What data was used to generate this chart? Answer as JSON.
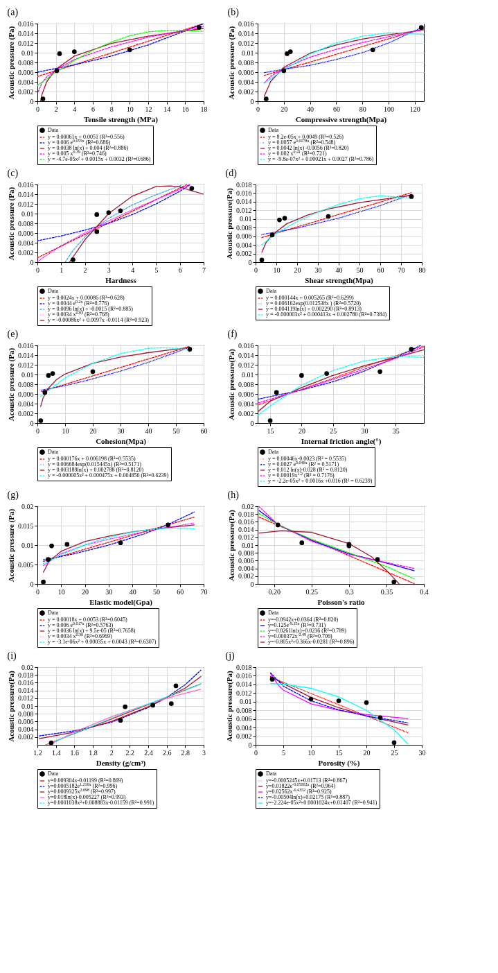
{
  "chart_data": [
    {
      "type": "line",
      "title": "(a)",
      "xlabel": "Tensile strength (MPa)",
      "ylabel": "Acoustic pressure (Pa)",
      "xlim": [
        0,
        18
      ],
      "xticks": [
        0,
        2,
        4,
        6,
        8,
        10,
        12,
        14,
        16,
        18
      ],
      "ylim": [
        0,
        0.016
      ],
      "yticks": [
        0,
        0.002,
        0.004,
        0.006,
        0.008,
        0.01,
        0.012,
        0.014,
        0.016
      ],
      "grid": true,
      "legend": "bottom",
      "series": [
        {
          "name": "Data",
          "type": "scatter",
          "marker": "circle",
          "color": "#000000",
          "x": [
            0.6,
            2.1,
            2.4,
            4,
            10,
            17.5
          ],
          "values": [
            0.0005,
            0.0063,
            0.0098,
            0.0102,
            0.0106,
            0.0152
          ]
        },
        {
          "name": "y = 0.00061x + 0.0051 (R²=0.556)",
          "color": "#ff0000",
          "line_style": "dashed",
          "x": [
            0,
            18
          ],
          "values": [
            0.0051,
            0.016
          ]
        },
        {
          "name": "y = 0.006 e$^{0.055x}$ (R²=0.686)",
          "color": "#0000ff",
          "line_style": "dashed",
          "x": [
            0,
            4,
            8,
            12,
            16,
            18
          ],
          "values": [
            0.006,
            0.0075,
            0.0093,
            0.0116,
            0.0145,
            0.016
          ]
        },
        {
          "name": "y = 0.0038 ln(x) + 0.004 (R²=0.886)",
          "color": "#a2142f",
          "line_style": "solid",
          "x": [
            0.35,
            0.5,
            1,
            2,
            4,
            8,
            12,
            18
          ],
          "values": [
            0,
            0.0014,
            0.004,
            0.0066,
            0.0093,
            0.0119,
            0.0134,
            0.015
          ]
        },
        {
          "name": "y = 0.005 x$^{0.39}$ (R²=0.746)",
          "color": "#ff00ff",
          "line_style": "dashed",
          "x": [
            0.1,
            0.5,
            1,
            2,
            4,
            8,
            12,
            18
          ],
          "values": [
            0.002,
            0.0038,
            0.005,
            0.0065,
            0.0086,
            0.0112,
            0.0132,
            0.0154
          ]
        },
        {
          "name": "y = -4.7e-05x² + 0.0015x + 0.0032 (R²=0.686)",
          "color": "#00ff00",
          "line_style": "dashed",
          "x": [
            0,
            2,
            4,
            6,
            8,
            10,
            12,
            14,
            16,
            18
          ],
          "values": [
            0.0032,
            0.006,
            0.0084,
            0.0105,
            0.0122,
            0.0135,
            0.0143,
            0.0146,
            0.0146,
            0.0144
          ]
        }
      ]
    },
    {
      "type": "line",
      "title": "(b)",
      "xlabel": "Compressive strength(Mpa)",
      "ylabel": "Acoustic pressure (Pa)",
      "xlim": [
        0,
        127
      ],
      "xticks": [
        0,
        20,
        40,
        60,
        80,
        100,
        120
      ],
      "ylim": [
        0,
        0.016
      ],
      "yticks": [
        0,
        0.002,
        0.004,
        0.006,
        0.008,
        0.01,
        0.012,
        0.014,
        0.016
      ],
      "grid": true,
      "legend": "bottom",
      "series": [
        {
          "name": "Data",
          "type": "scatter",
          "marker": "circle",
          "color": "#000000",
          "x": [
            6.5,
            20,
            22.5,
            25,
            88,
            125
          ],
          "values": [
            0.0005,
            0.0063,
            0.0098,
            0.0102,
            0.0106,
            0.0152
          ]
        },
        {
          "name": "y = 8.2e-05x + 0.0049 (R²=0.526)",
          "color": "#ff0000",
          "line_style": "dashed",
          "x": [
            5,
            127
          ],
          "values": [
            0.0053,
            0.015
          ]
        },
        {
          "name": "y = 0.0057 e$^{0.0078x}$ (R²=0.548)",
          "color": "#0000ff",
          "line_style": "dotted",
          "x": [
            5,
            20,
            40,
            60,
            80,
            100,
            127
          ],
          "values": [
            0.0059,
            0.0066,
            0.0074,
            0.0086,
            0.01,
            0.012,
            0.0154
          ]
        },
        {
          "name": "y = 0.0042 ln(x) -0.0056 (R²=0.820)",
          "color": "#a2142f",
          "line_style": "solid",
          "x": [
            5,
            10,
            20,
            40,
            60,
            80,
            100,
            127
          ],
          "values": [
            0.001,
            0.0041,
            0.007,
            0.0099,
            0.0116,
            0.0128,
            0.0137,
            0.0147
          ]
        },
        {
          "name": "y = 0.002 x$^{0.41}$ (R²=0.721)",
          "color": "#ff00ff",
          "line_style": "dashed",
          "x": [
            5,
            10,
            20,
            40,
            60,
            80,
            100,
            127
          ],
          "values": [
            0.0038,
            0.0051,
            0.0068,
            0.0091,
            0.0107,
            0.0121,
            0.0133,
            0.0148
          ]
        },
        {
          "name": "y = -9.8e-07x² + 0.00021x + 0.0027 (R²=0.786)",
          "color": "#00ffff",
          "line_style": "dashed",
          "x": [
            5,
            20,
            40,
            60,
            80,
            100,
            110,
            127
          ],
          "values": [
            0.0037,
            0.0065,
            0.0097,
            0.012,
            0.0134,
            0.0141,
            0.0141,
            0.0137
          ]
        }
      ]
    },
    {
      "type": "line",
      "title": "(c)",
      "xlabel": "Hardness",
      "ylabel": "Acoustic pressure (Pa)",
      "xlim": [
        0,
        7
      ],
      "xticks": [
        0,
        1,
        2,
        3,
        4,
        5,
        6,
        7
      ],
      "ylim": [
        0,
        0.016
      ],
      "yticks": [
        0,
        0.002,
        0.004,
        0.006,
        0.008,
        0.01,
        0.012,
        0.014,
        0.016
      ],
      "grid": true,
      "legend": "bottom",
      "series": [
        {
          "name": "Data",
          "type": "scatter",
          "marker": "circle",
          "color": "#000000",
          "x": [
            1.5,
            2.5,
            2.5,
            3,
            3.5,
            6.5
          ],
          "values": [
            0.0005,
            0.0063,
            0.0098,
            0.0102,
            0.0106,
            0.0152
          ]
        },
        {
          "name": "y = 0.0024x + 0.00086 (R²=0.628)",
          "color": "#ff0000",
          "line_style": "dashed",
          "x": [
            0,
            6.3
          ],
          "values": [
            0.0009,
            0.016
          ]
        },
        {
          "name": "y = 0.0044 e$^{0.2x}$ (R²=0.776)",
          "color": "#0000ff",
          "line_style": "dashed",
          "x": [
            0,
            1,
            2,
            3,
            4,
            5,
            6,
            6.45
          ],
          "values": [
            0.0044,
            0.0054,
            0.0066,
            0.008,
            0.0098,
            0.012,
            0.0146,
            0.016
          ]
        },
        {
          "name": "y = 0.0096 ln(x) + -0.0015 (R²=0.885)",
          "color": "#3fa9f5",
          "line_style": "dashed",
          "x": [
            1.17,
            1.5,
            2,
            2.5,
            3,
            4,
            5,
            6,
            6.1
          ],
          "values": [
            0,
            0.0024,
            0.0052,
            0.0073,
            0.009,
            0.0118,
            0.0139,
            0.0157,
            0.016
          ]
        },
        {
          "name": "y = 0.0034 x$^{0.83}$ (R²=0.768)",
          "color": "#ff00ff",
          "line_style": "dotted",
          "x": [
            0.02,
            1,
            2,
            3,
            4,
            5,
            6,
            6.4
          ],
          "values": [
            0.0002,
            0.0034,
            0.006,
            0.0085,
            0.0108,
            0.0129,
            0.015,
            0.016
          ]
        },
        {
          "name": "y = -0.00086x² + 0.0097x -0.0114 (R²=0.923)",
          "color": "#a2142f",
          "line_style": "solid",
          "x": [
            1.35,
            2,
            3,
            4,
            5,
            5.6,
            6,
            6.5,
            7
          ],
          "values": [
            0,
            0.0046,
            0.01,
            0.0136,
            0.0156,
            0.0157,
            0.0155,
            0.0147,
            0.014
          ]
        }
      ]
    },
    {
      "type": "line",
      "title": "(d)",
      "xlabel": "Shear strength(Mpa)",
      "ylabel": "Acoustic pressure(Pa)",
      "xlim": [
        0,
        80
      ],
      "xticks": [
        0,
        10,
        20,
        30,
        40,
        50,
        60,
        70,
        80
      ],
      "ylim": [
        0,
        0.018
      ],
      "yticks": [
        0,
        0.002,
        0.004,
        0.006,
        0.008,
        0.01,
        0.012,
        0.014,
        0.016,
        0.018
      ],
      "grid": true,
      "legend": "bottom",
      "series": [
        {
          "name": "Data",
          "type": "scatter",
          "marker": "circle",
          "color": "#000000",
          "x": [
            3,
            8,
            11.5,
            14,
            35,
            75
          ],
          "values": [
            0.0005,
            0.0063,
            0.0098,
            0.0102,
            0.0106,
            0.0152
          ]
        },
        {
          "name": "y = 0.000144x + 0.005265 (R²=0.6299)",
          "color": "#ff0000",
          "line_style": "dashed",
          "x": [
            3,
            75
          ],
          "values": [
            0.0057,
            0.0161
          ]
        },
        {
          "name": "y = 0.006162exp(0.012538x ) (R²=0.5720)",
          "color": "#0000ff",
          "line_style": "dotted",
          "x": [
            3,
            20,
            40,
            60,
            75
          ],
          "values": [
            0.0064,
            0.0079,
            0.0102,
            0.0131,
            0.0157
          ]
        },
        {
          "name": "y = 0.004119ln(x) + 0.002290 (R²=0.8913)",
          "color": "#a2142f",
          "line_style": "solid",
          "x": [
            3,
            5,
            8,
            15,
            25,
            35,
            50,
            75
          ],
          "values": [
            0.0023,
            0.0045,
            0.0063,
            0.0089,
            0.0109,
            0.0123,
            0.0138,
            0.0155
          ]
        },
        {
          "name": "y = -0.000003x² + 0.000413x + 0.002780 (R²=0.7384)",
          "color": "#00ffff",
          "line_style": "dashed",
          "x": [
            3,
            10,
            20,
            30,
            40,
            50,
            60,
            70,
            75
          ],
          "values": [
            0.004,
            0.0067,
            0.0094,
            0.0116,
            0.0134,
            0.0147,
            0.0154,
            0.015,
            0.0148
          ]
        }
      ]
    },
    {
      "type": "line",
      "title": "(e)",
      "xlabel": "Cohesion(Mpa)",
      "ylabel": "Acoustic pressure (Pa)",
      "xlim": [
        0,
        60
      ],
      "xticks": [
        0,
        10,
        20,
        30,
        40,
        50,
        60
      ],
      "ylim": [
        0,
        0.016
      ],
      "yticks": [
        0,
        0.002,
        0.004,
        0.006,
        0.008,
        0.01,
        0.012,
        0.014,
        0.016
      ],
      "grid": true,
      "legend": "bottom",
      "series": [
        {
          "name": "Data",
          "type": "scatter",
          "marker": "circle",
          "color": "#000000",
          "x": [
            1.2,
            2.7,
            4,
            5.5,
            20,
            55
          ],
          "values": [
            0.0005,
            0.0063,
            0.0098,
            0.0102,
            0.0106,
            0.0152
          ]
        },
        {
          "name": "y = 0.000176x + 0.006198 (R²=0.5535)",
          "color": "#ff0000",
          "line_style": "dashed",
          "x": [
            1.5,
            55
          ],
          "values": [
            0.0065,
            0.0158
          ]
        },
        {
          "name": "y = 0.006684exp(0.015445x) (R²=0.5171)",
          "color": "#0000ff",
          "line_style": "dotted",
          "x": [
            1.5,
            10,
            20,
            30,
            40,
            55
          ],
          "values": [
            0.0068,
            0.0077,
            0.0091,
            0.0107,
            0.0125,
            0.0156
          ]
        },
        {
          "name": "y = 0.003189ln(x) + 0.002788 (R²=0.8120)",
          "color": "#a2142f",
          "line_style": "solid",
          "x": [
            1.2,
            2,
            4,
            7,
            10,
            20,
            30,
            40,
            55
          ],
          "values": [
            0.0034,
            0.0051,
            0.0072,
            0.009,
            0.0101,
            0.0123,
            0.0136,
            0.0145,
            0.0156
          ]
        },
        {
          "name": "y = -0.000005x² + 0.000475x + 0.004850 (R²=0.6239)",
          "color": "#00ffff",
          "line_style": "dashed",
          "x": [
            1.2,
            5,
            10,
            20,
            30,
            40,
            45,
            50,
            55
          ],
          "values": [
            0.0055,
            0.0071,
            0.0093,
            0.0123,
            0.0143,
            0.0154,
            0.0155,
            0.0154,
            0.0151
          ]
        }
      ]
    },
    {
      "type": "line",
      "title": "(f)",
      "xlabel": "Internal friction angle(°)",
      "ylabel": "Acoustic pressure(Pa)",
      "xlim": [
        13,
        39.5
      ],
      "xticks": [
        15,
        20,
        25,
        30,
        35
      ],
      "ylim": [
        0,
        0.016
      ],
      "yticks": [
        0,
        0.002,
        0.004,
        0.006,
        0.008,
        0.01,
        0.012,
        0.014,
        0.016
      ],
      "grid": true,
      "legend": "bottom",
      "series": [
        {
          "name": "Data",
          "type": "scatter",
          "marker": "circle",
          "color": "#000000",
          "x": [
            15,
            16,
            20,
            24,
            32.5,
            37.5
          ],
          "values": [
            0.0005,
            0.0063,
            0.0098,
            0.0102,
            0.0106,
            0.0152
          ]
        },
        {
          "name": "y = 0.00046x-0.0023 (R² = 0.5535)",
          "color": "#ff0000",
          "line_style": "dotted",
          "x": [
            13,
            39.5
          ],
          "values": [
            0.0037,
            0.0159
          ]
        },
        {
          "name": "y = 0.0027 e$^{0.046x}$ (R² = 0.5171)",
          "color": "#0000ff",
          "line_style": "dashed",
          "x": [
            13,
            20,
            25,
            30,
            35,
            39
          ],
          "values": [
            0.0049,
            0.0068,
            0.0085,
            0.0107,
            0.0135,
            0.016
          ]
        },
        {
          "name": "y = 0.012 ln(x)-0.028 (R² = 0.8120)",
          "color": "#a2142f",
          "line_style": "solid",
          "x": [
            13,
            15,
            20,
            25,
            30,
            35,
            39.5
          ],
          "values": [
            0.0023,
            0.0045,
            0.0073,
            0.0098,
            0.0118,
            0.0135,
            0.0151
          ]
        },
        {
          "name": "y = 0.00019x$^{1.2}$ (R² = 0.7176)",
          "color": "#ff00ff",
          "line_style": "dashed",
          "x": [
            13,
            20,
            25,
            30,
            35,
            39.5
          ],
          "values": [
            0.0041,
            0.0069,
            0.009,
            0.0111,
            0.0133,
            0.0157
          ]
        },
        {
          "name": "y = -2.2e-05x² + 0.0016x +0.016 (R² = 0.6239)",
          "color": "#00ffff",
          "line_style": "dashed",
          "x": [
            13,
            15,
            20,
            25,
            30,
            35,
            37,
            39.5
          ],
          "values": [
            0.0016,
            0.0035,
            0.0078,
            0.0108,
            0.0128,
            0.0137,
            0.0137,
            0.0135
          ]
        }
      ]
    },
    {
      "type": "line",
      "title": "(g)",
      "xlabel": "Elastic model(Gpa)",
      "ylabel": "Acoustic pressure (Pa)",
      "xlim": [
        0,
        70
      ],
      "xticks": [
        0,
        10,
        20,
        30,
        40,
        50,
        60,
        70
      ],
      "ylim": [
        0,
        0.02
      ],
      "yticks": [
        0,
        0.005,
        0.01,
        0.015,
        0.02
      ],
      "grid": true,
      "legend": "bottom",
      "series": [
        {
          "name": "Data",
          "type": "scatter",
          "marker": "circle",
          "color": "#000000",
          "x": [
            2.5,
            4.5,
            6,
            12.5,
            35,
            55
          ],
          "values": [
            0.0005,
            0.0063,
            0.0098,
            0.0102,
            0.0106,
            0.0152
          ]
        },
        {
          "name": "y = 0.00018x + 0.0053 (R²=0.6045)",
          "color": "#ff0000",
          "line_style": "dashed",
          "x": [
            2.5,
            66
          ],
          "values": [
            0.0058,
            0.0172
          ]
        },
        {
          "name": "y = 0.006 e$^{0.017x}$ (R²=0.5763)",
          "color": "#0000ff",
          "line_style": "dashed",
          "x": [
            2.5,
            15,
            30,
            45,
            55,
            66
          ],
          "values": [
            0.0062,
            0.0077,
            0.01,
            0.0129,
            0.0153,
            0.0185
          ]
        },
        {
          "name": "y = 0.0036 ln(x) + 9.5e-05 (R²=0.7658)",
          "color": "#a2142f",
          "line_style": "solid",
          "x": [
            2.5,
            5,
            10,
            20,
            30,
            40,
            50,
            66
          ],
          "values": [
            0.003,
            0.0059,
            0.0084,
            0.0109,
            0.0123,
            0.0134,
            0.0142,
            0.0152
          ]
        },
        {
          "name": "y = 0.0034 x$^{0.36}$ (R²=0.6969)",
          "color": "#ff00ff",
          "line_style": "dotted",
          "x": [
            2.5,
            10,
            20,
            30,
            40,
            50,
            66
          ],
          "values": [
            0.0047,
            0.0078,
            0.01,
            0.0115,
            0.0128,
            0.014,
            0.0157
          ]
        },
        {
          "name": "y = -3.1e-06x² + 0.00035x + 0.0043 (R²=0.6307)",
          "color": "#00ffff",
          "line_style": "dashed",
          "x": [
            2.5,
            10,
            20,
            30,
            40,
            50,
            58,
            66
          ],
          "values": [
            0.0052,
            0.0075,
            0.0101,
            0.012,
            0.0134,
            0.0142,
            0.0144,
            0.0142
          ]
        }
      ]
    },
    {
      "type": "line",
      "title": "(h)",
      "xlabel": "Poisson's ratio",
      "ylabel": "Acoustic pressure(Pa)",
      "xlim": [
        0.178,
        0.4
      ],
      "xticks": [
        {
          "value": 0.2,
          "label": "0.20"
        },
        0.25,
        0.3,
        0.35,
        0.4
      ],
      "ylim": [
        0,
        0.02
      ],
      "yticks": [
        0,
        0.002,
        0.004,
        0.006,
        0.008,
        0.01,
        0.012,
        0.014,
        0.016,
        0.018,
        0.02
      ],
      "grid": true,
      "legend": "bottom",
      "series": [
        {
          "name": "Data",
          "type": "scatter",
          "marker": "circle",
          "color": "#000000",
          "x": [
            0.205,
            0.237,
            0.3,
            0.3,
            0.338,
            0.36
          ],
          "values": [
            0.0152,
            0.0106,
            0.0102,
            0.0098,
            0.0063,
            0.0005
          ]
        },
        {
          "name": "y=-0.0942x+0.0364 (R²=0.820)",
          "color": "#ff0000",
          "line_style": "dashed",
          "x": [
            0.18,
            0.387
          ],
          "values": [
            0.0172,
            0.0001
          ]
        },
        {
          "name": "y=0.125e$^{-9.35x}$ (R²=0.731)",
          "color": "#0000ff",
          "line_style": "solid",
          "x": [
            0.18,
            0.205,
            0.25,
            0.3,
            0.35,
            0.387
          ],
          "values": [
            0.0189,
            0.0153,
            0.0112,
            0.0078,
            0.0054,
            0.0034
          ]
        },
        {
          "name": "y=-0.0261ln(x)+0.0236 (R²=0.789)",
          "color": "#00ff00",
          "line_style": "dashed",
          "x": [
            0.18,
            0.205,
            0.25,
            0.3,
            0.35,
            0.387
          ],
          "values": [
            0.0181,
            0.0153,
            0.0115,
            0.008,
            0.0045,
            0.0013
          ]
        },
        {
          "name": "y=0.000372x$^{-2.49}$ (R²=0.706)",
          "color": "#ff00ff",
          "line_style": "dashed",
          "x": [
            0.18,
            0.205,
            0.25,
            0.3,
            0.35,
            0.387
          ],
          "values": [
            0.0199,
            0.0153,
            0.011,
            0.0076,
            0.0055,
            0.004
          ]
        },
        {
          "name": "y=-0.805x²+0.366x-0.0281 (R²=0.896)",
          "color": "#a2142f",
          "line_style": "solid",
          "x": [
            0.18,
            0.21,
            0.25,
            0.3,
            0.33,
            0.35,
            0.367
          ],
          "values": [
            0.0131,
            0.0137,
            0.0133,
            0.0104,
            0.007,
            0.0035,
            0
          ]
        }
      ]
    },
    {
      "type": "line",
      "title": "(i)",
      "xlabel": "Density (g/cm³)",
      "ylabel": "Acoustic pressure(Pa)",
      "xlim": [
        1.2,
        3
      ],
      "xticks": [
        1.2,
        1.4,
        1.6,
        1.8,
        2,
        2.2,
        2.4,
        2.6,
        2.8,
        3
      ],
      "ylim": [
        0,
        0.02
      ],
      "yticks": [
        0.002,
        0.004,
        0.006,
        0.008,
        0.01,
        0.012,
        0.014,
        0.016,
        0.018,
        0.02
      ],
      "grid": true,
      "legend": "bottom",
      "series": [
        {
          "name": "Data",
          "type": "scatter",
          "marker": "circle",
          "color": "#000000",
          "x": [
            1.35,
            2.1,
            2.15,
            2.45,
            2.65,
            2.7
          ],
          "values": [
            0.0005,
            0.0063,
            0.0098,
            0.0102,
            0.0106,
            0.0152
          ]
        },
        {
          "name": "y=0.009304x-0.01199 (R²=0.869)",
          "color": "#ff0000",
          "line_style": "solid",
          "x": [
            1.29,
            2.97
          ],
          "values": [
            0,
            0.0157
          ]
        },
        {
          "name": "y=0.0005182e$^{1.216x}$ (R²=0.996)",
          "color": "#0000ff",
          "line_style": "dashed",
          "x": [
            1.22,
            1.6,
            2,
            2.4,
            2.6,
            2.8,
            2.97
          ],
          "values": [
            0.0023,
            0.0036,
            0.0058,
            0.0096,
            0.0122,
            0.0155,
            0.0192
          ]
        },
        {
          "name": "y=0.0009325x$^{2.698}$ (R²=0.997)",
          "color": "#a2142f",
          "line_style": "solid",
          "x": [
            1.22,
            1.6,
            2,
            2.4,
            2.6,
            2.8,
            2.97
          ],
          "values": [
            0.0016,
            0.0033,
            0.006,
            0.0098,
            0.0122,
            0.0146,
            0.0176
          ]
        },
        {
          "name": "y=0.018ln(x)-0.005227 (R²=0.993)",
          "color": "#ff66cc",
          "line_style": "solid",
          "x": [
            1.33,
            1.6,
            2,
            2.4,
            2.6,
            2.8,
            2.97
          ],
          "values": [
            0,
            0.0033,
            0.0072,
            0.0105,
            0.012,
            0.0133,
            0.0143
          ]
        },
        {
          "name": "y=0.0001038x²+0.008883x-0.01159 (R²=0.991)",
          "color": "#00ffff",
          "line_style": "dashed",
          "x": [
            1.3,
            2.1,
            2.97
          ],
          "values": [
            0,
            0.0078,
            0.0157
          ]
        }
      ]
    },
    {
      "type": "line",
      "title": "(j)",
      "xlabel": "Porosity (%)",
      "ylabel": "Acoustic pressure(Pa)",
      "xlim": [
        0,
        30
      ],
      "xticks": [
        0,
        5,
        10,
        15,
        20,
        25,
        30
      ],
      "ylim": [
        0,
        0.018
      ],
      "yticks": [
        0,
        0.002,
        0.004,
        0.006,
        0.008,
        0.01,
        0.012,
        0.014,
        0.016,
        0.018
      ],
      "grid": true,
      "legend": "bottom",
      "series": [
        {
          "name": "Data",
          "type": "scatter",
          "marker": "circle",
          "color": "#000000",
          "x": [
            3,
            10,
            15,
            20,
            22.5,
            25
          ],
          "values": [
            0.0152,
            0.0106,
            0.0102,
            0.0098,
            0.0063,
            0.0005
          ]
        },
        {
          "name": "y=-0.0005245x+0.01713 (R²=0.867)",
          "color": "#ff0000",
          "line_style": "dotted",
          "x": [
            2.7,
            27.5
          ],
          "values": [
            0.0157,
            0.0028
          ]
        },
        {
          "name": "y=0.01822e$^{-0.05002x}$ (R²=0.964)",
          "color": "#a2142f",
          "line_style": "solid",
          "x": [
            2.7,
            5,
            10,
            15,
            20,
            27.5
          ],
          "values": [
            0.0159,
            0.0142,
            0.011,
            0.0086,
            0.0067,
            0.0046
          ]
        },
        {
          "name": "y=0.02562x$^{-0.4352}$ (R²=0.925)",
          "color": "#ff00ff",
          "line_style": "solid",
          "x": [
            2.7,
            4,
            5,
            10,
            15,
            20,
            27.5
          ],
          "values": [
            0.0165,
            0.014,
            0.0127,
            0.0095,
            0.008,
            0.007,
            0.0061
          ]
        },
        {
          "name": "y=-0.00504ln(x)+0.02175 (R²=0.887)",
          "color": "#0000ff",
          "line_style": "dashed",
          "x": [
            2.7,
            5,
            10,
            15,
            20,
            27.5
          ],
          "values": [
            0.0167,
            0.0136,
            0.0102,
            0.0081,
            0.0067,
            0.0051
          ]
        },
        {
          "name": "y=-2.224e-05x²+0.0001024x+0.01407 (R²=0.941)",
          "color": "#00ffff",
          "line_style": "solid",
          "x": [
            2.7,
            5,
            10,
            15,
            20,
            25,
            27.5
          ],
          "values": [
            0.0142,
            0.0141,
            0.0131,
            0.0111,
            0.008,
            0.0035,
            0.0002
          ]
        }
      ]
    }
  ]
}
